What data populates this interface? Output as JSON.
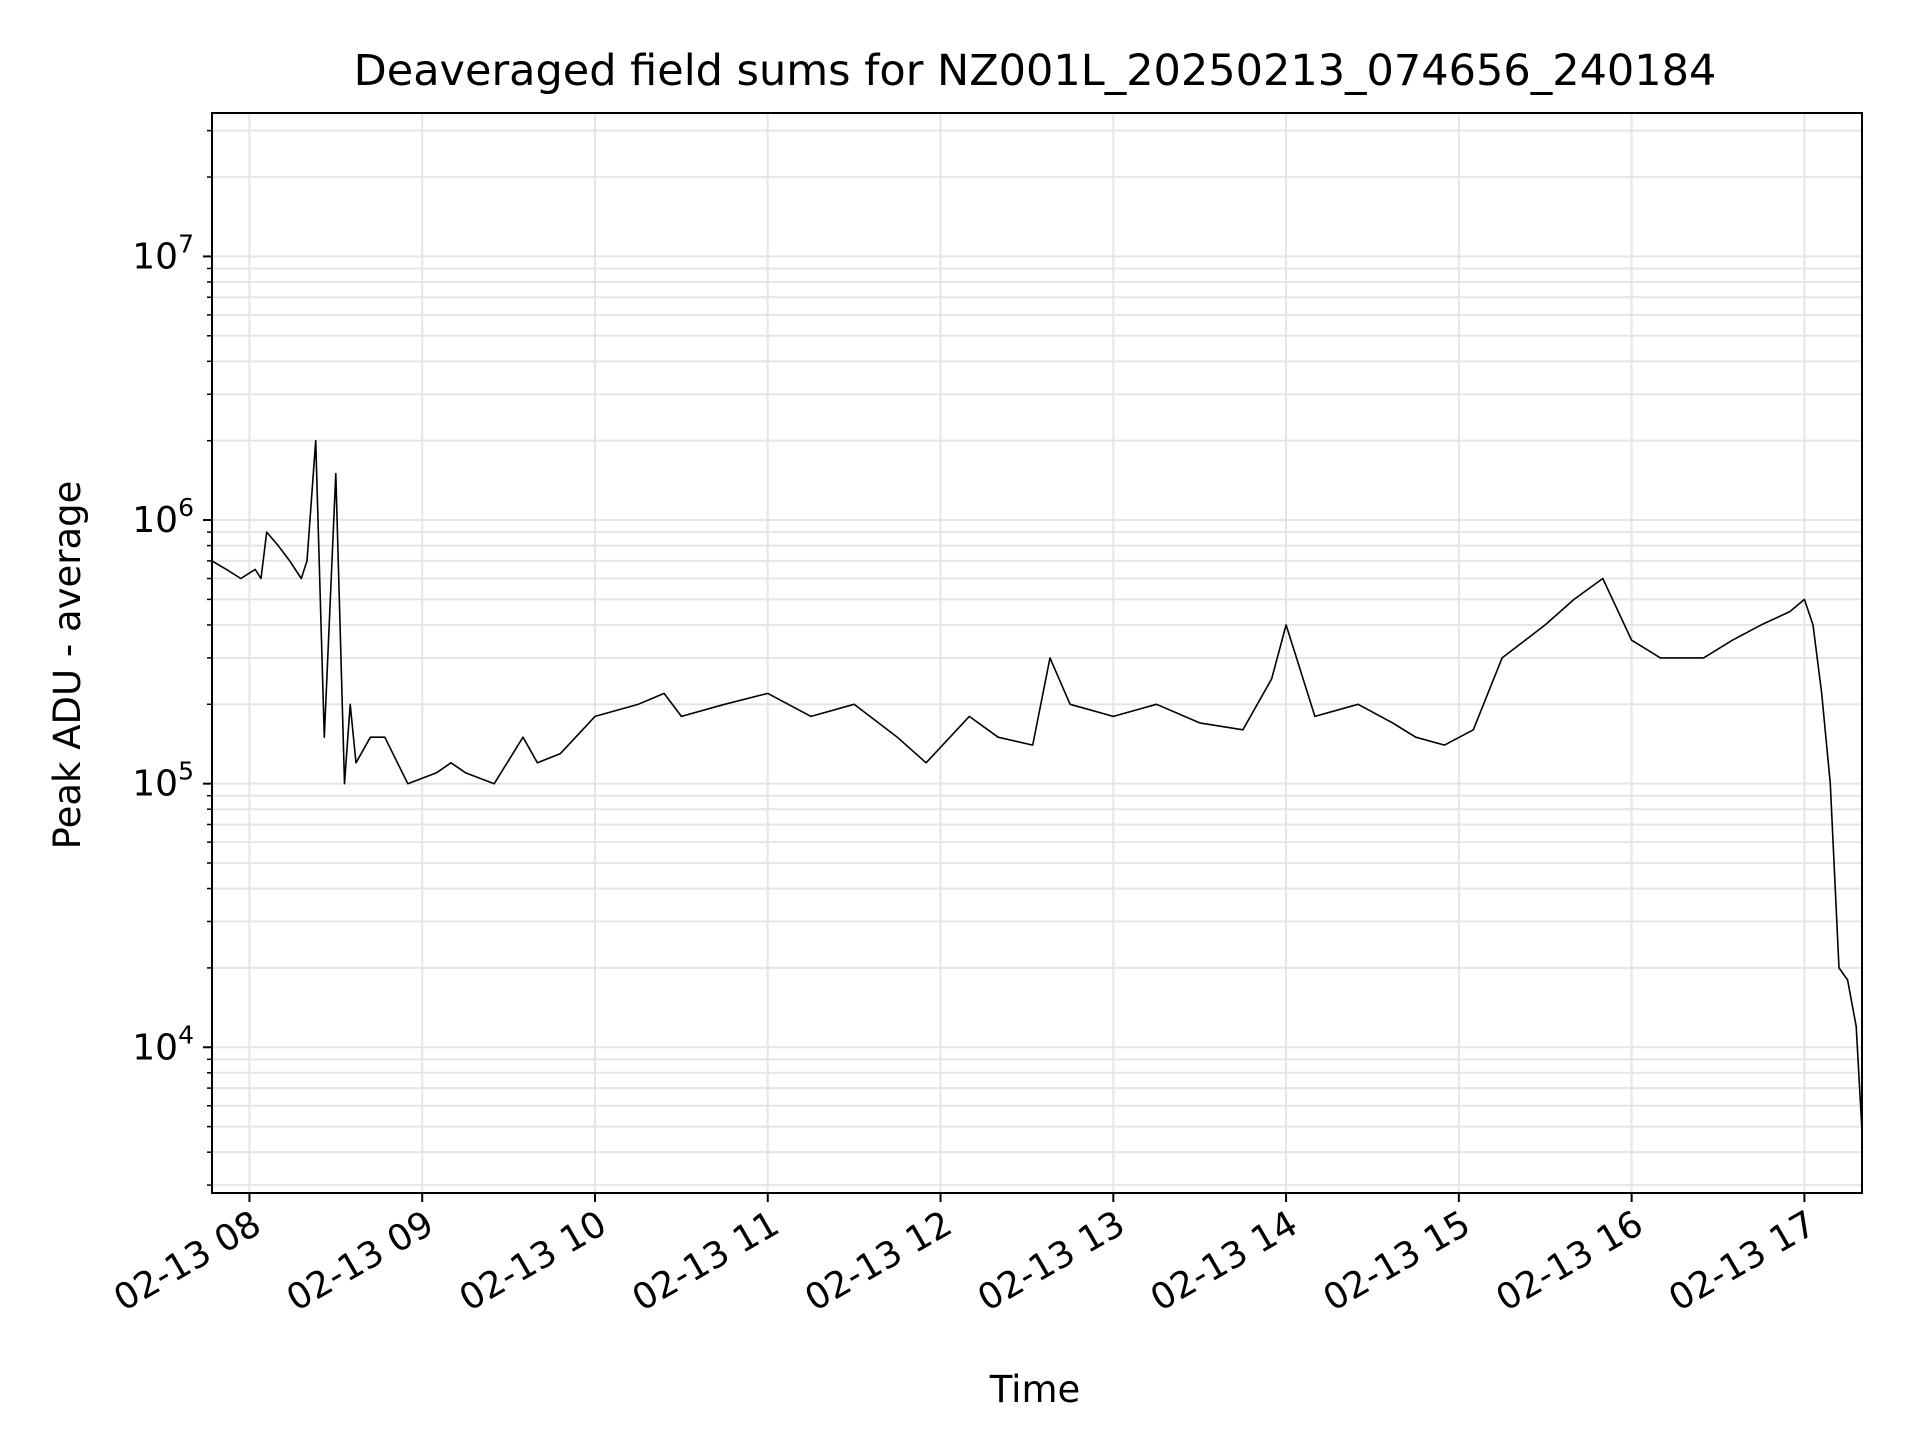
{
  "chart_data": {
    "type": "line",
    "title": "Deaveraged field sums for NZ001L_20250213_074656_240184",
    "xlabel": "Time",
    "ylabel": "Peak ADU - average",
    "yscale": "log",
    "ylim": [
      2800,
      35000000
    ],
    "xlim": [
      "2025-02-13 07:47",
      "2025-02-13 17:20"
    ],
    "x_ticks": [
      "02-13 08",
      "02-13 09",
      "02-13 10",
      "02-13 11",
      "02-13 12",
      "02-13 13",
      "02-13 14",
      "02-13 15",
      "02-13 16",
      "02-13 17"
    ],
    "y_ticks": [
      {
        "exp": "4",
        "value": 10000
      },
      {
        "exp": "5",
        "value": 100000
      },
      {
        "exp": "6",
        "value": 1000000
      },
      {
        "exp": "7",
        "value": 10000000
      }
    ],
    "grid": true,
    "line_color": "#000000",
    "series": [
      {
        "x": [
          "2025-02-13 07:47",
          "2025-02-13 07:52",
          "2025-02-13 07:57",
          "2025-02-13 08:02",
          "2025-02-13 08:04",
          "2025-02-13 08:06",
          "2025-02-13 08:10",
          "2025-02-13 08:14",
          "2025-02-13 08:18",
          "2025-02-13 08:20",
          "2025-02-13 08:23",
          "2025-02-13 08:26",
          "2025-02-13 08:30",
          "2025-02-13 08:33",
          "2025-02-13 08:35",
          "2025-02-13 08:37",
          "2025-02-13 08:42",
          "2025-02-13 08:47",
          "2025-02-13 08:55",
          "2025-02-13 09:05",
          "2025-02-13 09:10",
          "2025-02-13 09:15",
          "2025-02-13 09:25",
          "2025-02-13 09:35",
          "2025-02-13 09:40",
          "2025-02-13 09:48",
          "2025-02-13 10:00",
          "2025-02-13 10:15",
          "2025-02-13 10:24",
          "2025-02-13 10:30",
          "2025-02-13 10:45",
          "2025-02-13 11:00",
          "2025-02-13 11:15",
          "2025-02-13 11:30",
          "2025-02-13 11:45",
          "2025-02-13 11:55",
          "2025-02-13 12:10",
          "2025-02-13 12:20",
          "2025-02-13 12:32",
          "2025-02-13 12:38",
          "2025-02-13 12:45",
          "2025-02-13 13:00",
          "2025-02-13 13:15",
          "2025-02-13 13:30",
          "2025-02-13 13:45",
          "2025-02-13 13:55",
          "2025-02-13 14:00",
          "2025-02-13 14:10",
          "2025-02-13 14:25",
          "2025-02-13 14:37",
          "2025-02-13 14:45",
          "2025-02-13 14:55",
          "2025-02-13 15:05",
          "2025-02-13 15:15",
          "2025-02-13 15:30",
          "2025-02-13 15:40",
          "2025-02-13 15:50",
          "2025-02-13 16:00",
          "2025-02-13 16:10",
          "2025-02-13 16:25",
          "2025-02-13 16:35",
          "2025-02-13 16:45",
          "2025-02-13 16:55",
          "2025-02-13 17:00",
          "2025-02-13 17:03",
          "2025-02-13 17:06",
          "2025-02-13 17:09",
          "2025-02-13 17:12",
          "2025-02-13 17:15",
          "2025-02-13 17:18",
          "2025-02-13 17:20"
        ],
        "y": [
          700000,
          650000,
          600000,
          650000,
          600000,
          900000,
          800000,
          700000,
          600000,
          700000,
          2000000,
          150000,
          1500000,
          100000,
          200000,
          120000,
          150000,
          150000,
          100000,
          110000,
          120000,
          110000,
          100000,
          150000,
          120000,
          130000,
          180000,
          200000,
          220000,
          180000,
          200000,
          220000,
          180000,
          200000,
          150000,
          120000,
          180000,
          150000,
          140000,
          300000,
          200000,
          180000,
          200000,
          170000,
          160000,
          250000,
          400000,
          180000,
          200000,
          170000,
          150000,
          140000,
          160000,
          300000,
          400000,
          500000,
          600000,
          350000,
          300000,
          300000,
          350000,
          400000,
          450000,
          500000,
          400000,
          220000,
          100000,
          20000,
          18000,
          12000,
          4800
        ]
      }
    ]
  }
}
